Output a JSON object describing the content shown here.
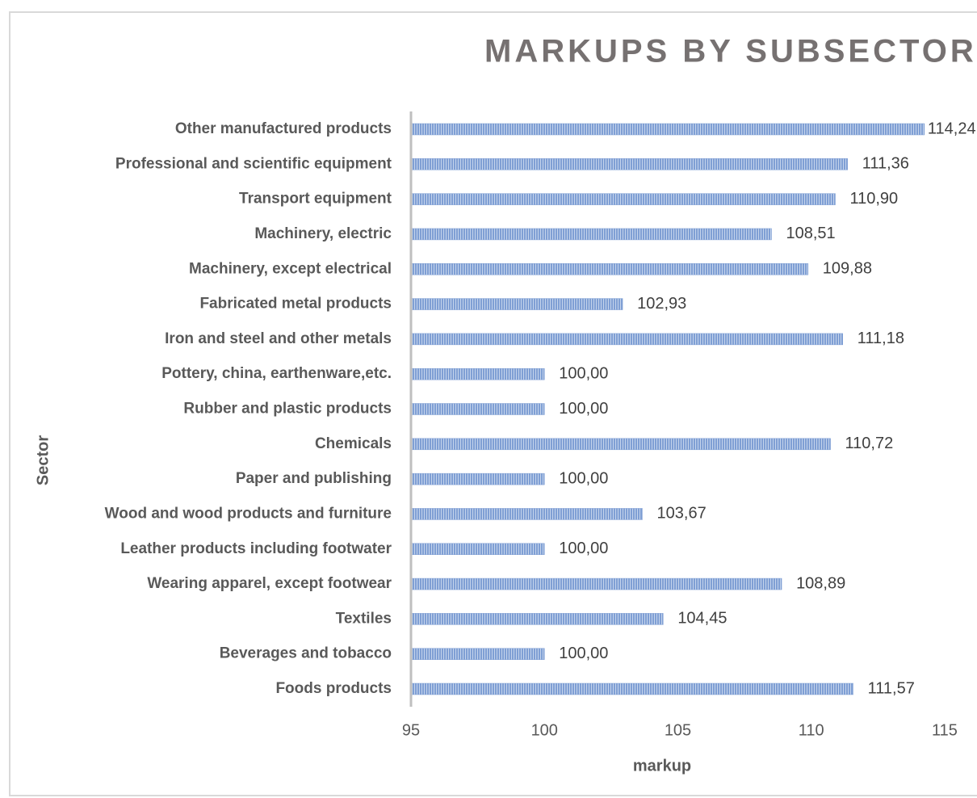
{
  "chart_data": {
    "type": "hbar",
    "title": "MARKUPS BY SUBSECTORS",
    "x_label": "markup",
    "y_label": "Sector",
    "categories": [
      "Other manufactured products",
      "Professional and scientific equipment",
      "Transport equipment",
      "Machinery, electric",
      "Machinery, except electrical",
      "Fabricated metal products",
      "Iron and steel and other metals",
      "Pottery, china, earthenware,etc.",
      "Rubber and plastic products",
      "Chemicals",
      "Paper and publishing",
      "Wood and wood products and furniture",
      "Leather products including footwater",
      "Wearing apparel, except footwear",
      "Textiles",
      "Beverages and tobacco",
      "Foods products"
    ],
    "values": [
      114.24,
      111.36,
      110.9,
      108.51,
      109.88,
      102.93,
      111.18,
      100.0,
      100.0,
      110.72,
      100.0,
      103.67,
      100.0,
      108.89,
      104.45,
      100.0,
      111.57
    ],
    "value_labels": [
      "114,24",
      "111,36",
      "110,90",
      "108,51",
      "109,88",
      "102,93",
      "111,18",
      "100,00",
      "100,00",
      "110,72",
      "100,00",
      "103,67",
      "100,00",
      "108,89",
      "104,45",
      "100,00",
      "111,57"
    ],
    "color": "#7f9fd4",
    "xlim": [
      95,
      115
    ],
    "xticks": [
      95,
      100,
      105,
      110,
      115
    ]
  }
}
